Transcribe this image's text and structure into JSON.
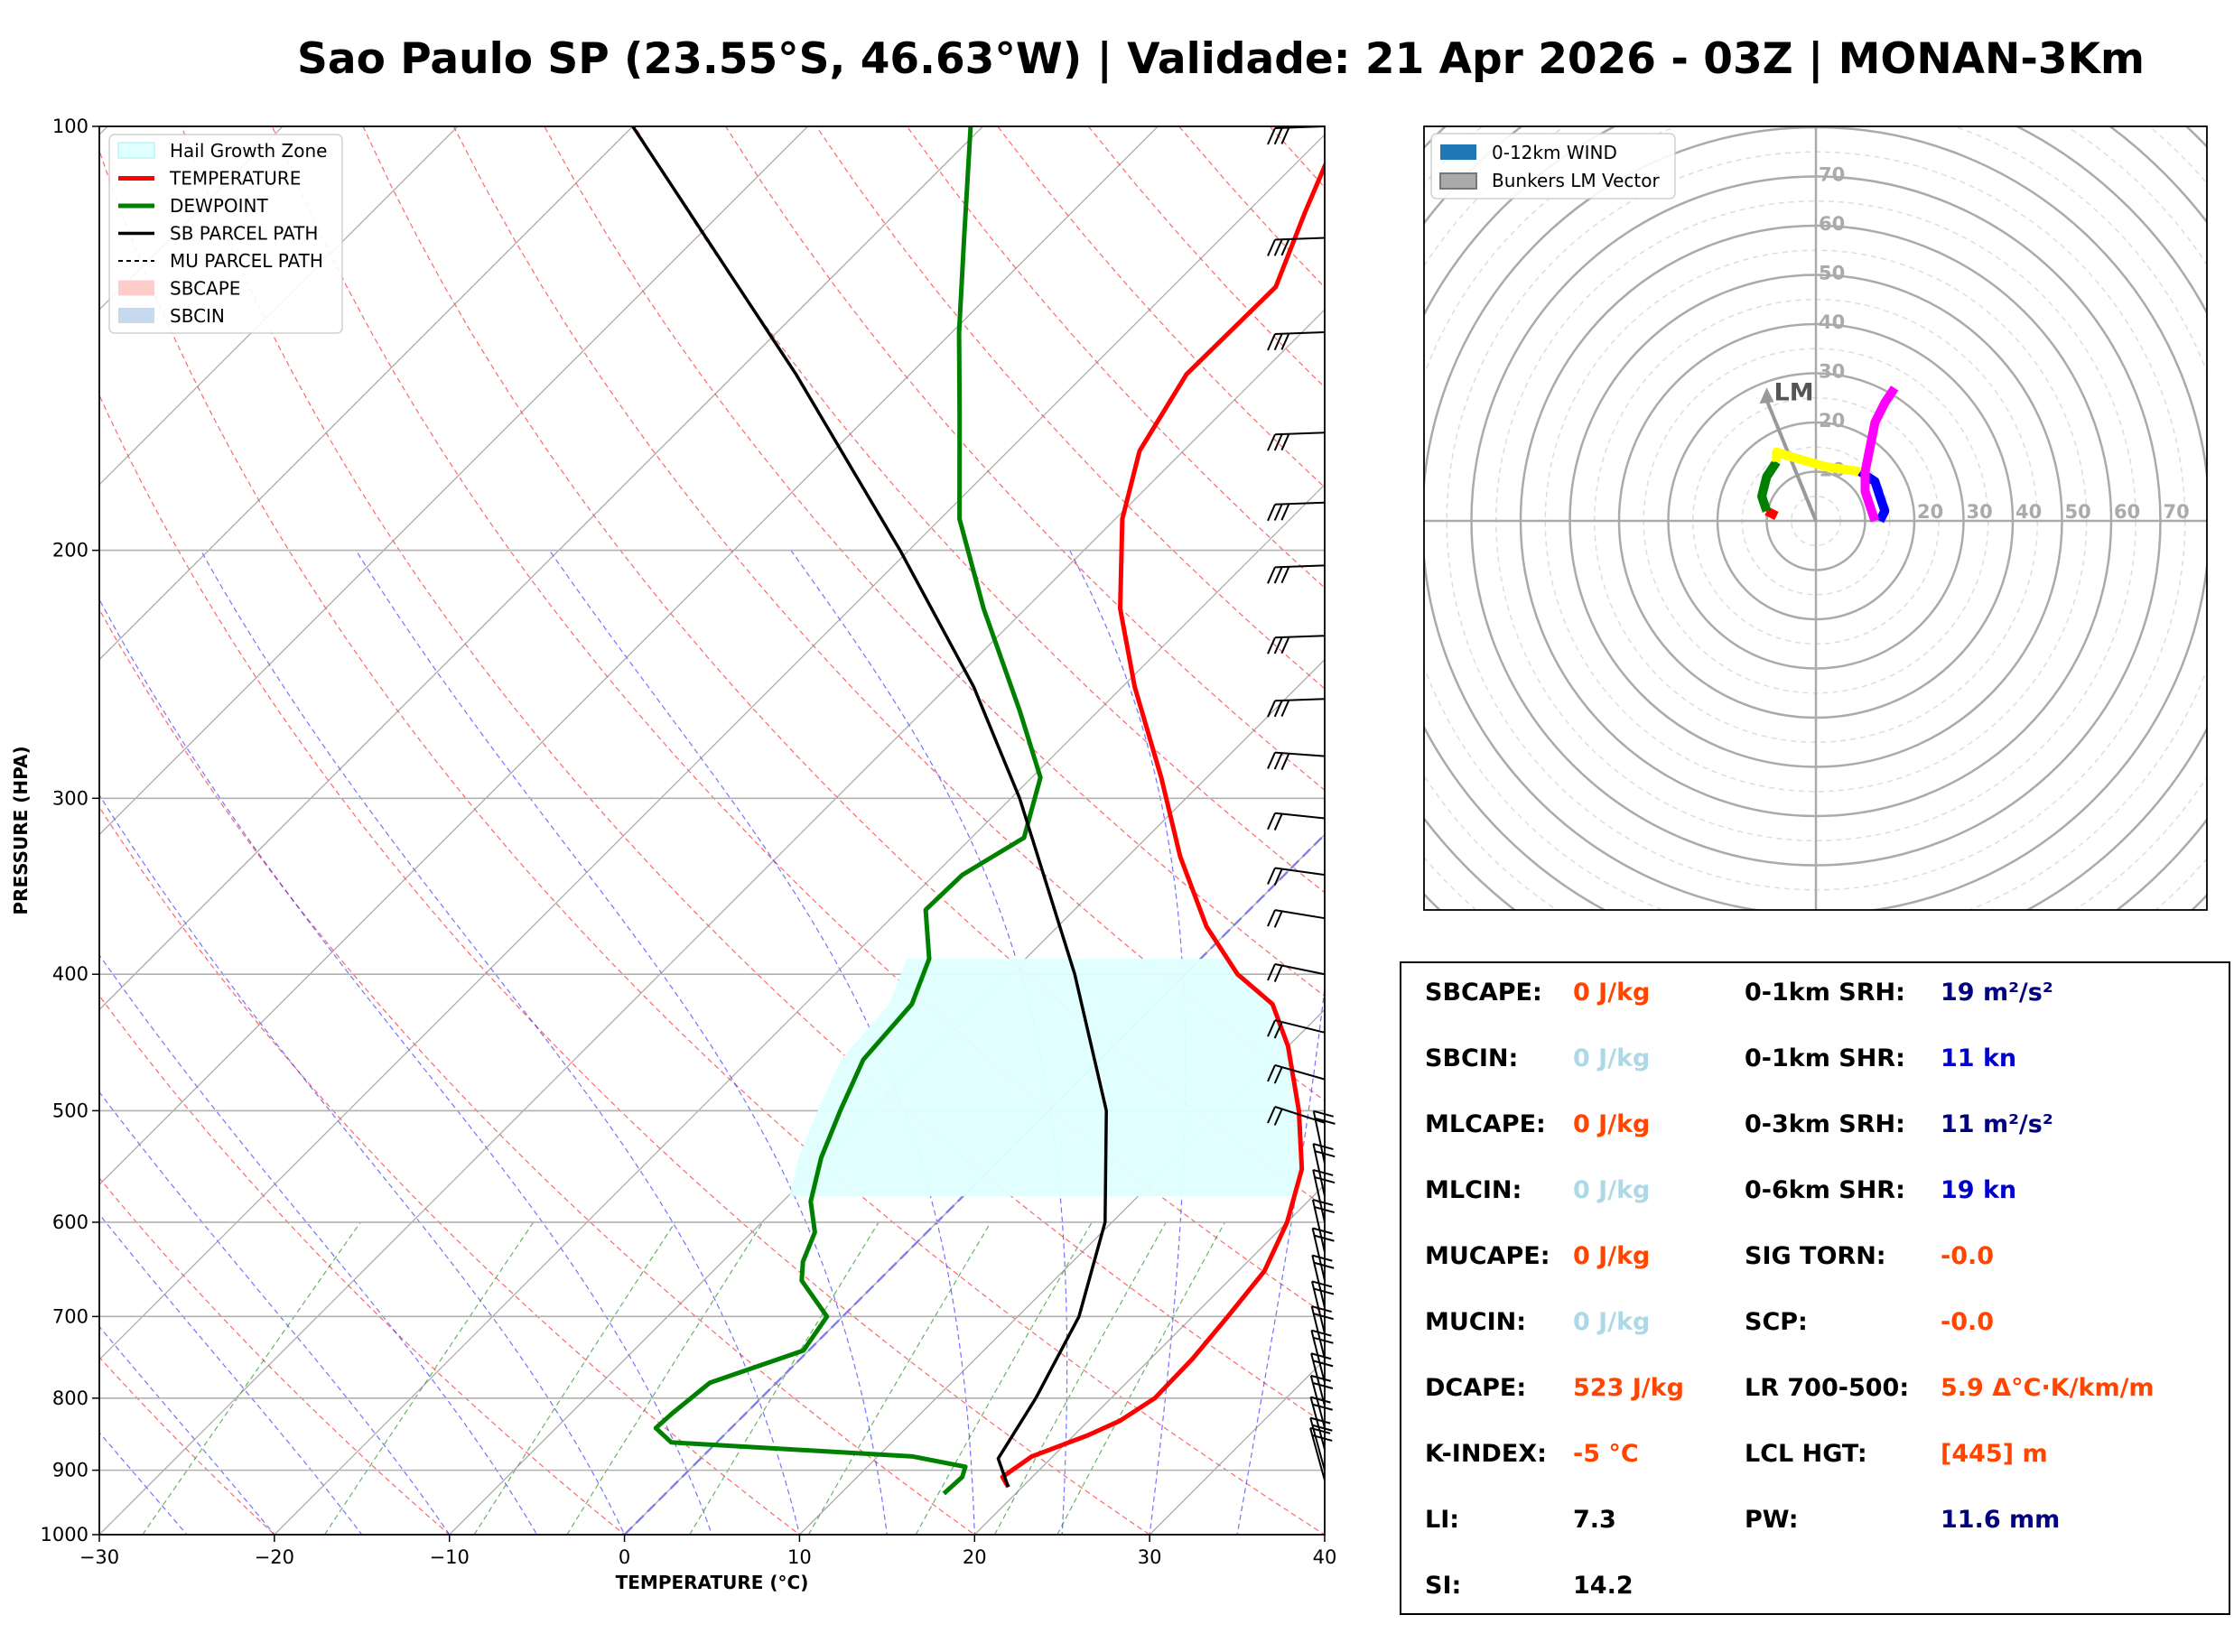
{
  "title": "Sao Paulo SP (23.55°S, 46.63°W) | Validade: 21 Apr 2026 - 03Z | MONAN-3Km",
  "chart_data": [
    {
      "type": "skewt",
      "xlabel": "TEMPERATURE (°C)",
      "ylabel": "PRESSURE (HPA)",
      "xlim": [
        -30,
        40
      ],
      "ylim": [
        1000,
        100
      ],
      "log_scale_y": true,
      "x_ticks": [
        -30,
        -20,
        -10,
        0,
        10,
        20,
        30,
        40
      ],
      "x_tick_labels": [
        "−30",
        "−20",
        "−10",
        "0",
        "10",
        "20",
        "30",
        "40"
      ],
      "y_ticks": [
        1000,
        900,
        800,
        700,
        600,
        500,
        400,
        300,
        200,
        100
      ],
      "grid": true,
      "legend_position": "top-left",
      "legend": [
        "Hail Growth Zone",
        "TEMPERATURE",
        "DEWPOINT",
        "SB PARCEL PATH",
        "MU PARCEL PATH",
        "SBCAPE",
        "SBCIN"
      ],
      "series": [
        {
          "name": "TEMPERATURE",
          "color": "#ff0000",
          "points": [
            [
              925,
              19.2
            ],
            [
              910,
              18.3
            ],
            [
              880,
              18.8
            ],
            [
              850,
              20.8
            ],
            [
              830,
              21.8
            ],
            [
              800,
              22.5
            ],
            [
              750,
              22.4
            ],
            [
              700,
              22.0
            ],
            [
              650,
              21.5
            ],
            [
              600,
              20.0
            ],
            [
              550,
              17.8
            ],
            [
              500,
              14.3
            ],
            [
              450,
              10.0
            ],
            [
              420,
              6.7
            ],
            [
              400,
              3.0
            ],
            [
              370,
              -1.5
            ],
            [
              330,
              -7.0
            ],
            [
              290,
              -12.6
            ],
            [
              250,
              -19.3
            ],
            [
              220,
              -24.6
            ],
            [
              190,
              -29.6
            ],
            [
              170,
              -32.5
            ],
            [
              150,
              -34.2
            ],
            [
              130,
              -34.1
            ],
            [
              115,
              -36.7
            ],
            [
              100,
              -39.5
            ]
          ]
        },
        {
          "name": "DEWPOINT",
          "color": "#008000",
          "points": [
            [
              935,
              15.9
            ],
            [
              910,
              16.0
            ],
            [
              895,
              15.6
            ],
            [
              880,
              12.0
            ],
            [
              860,
              -2.6
            ],
            [
              840,
              -4.3
            ],
            [
              820,
              -4.2
            ],
            [
              780,
              -3.8
            ],
            [
              740,
              -0.3
            ],
            [
              700,
              -0.9
            ],
            [
              660,
              -4.4
            ],
            [
              640,
              -5.4
            ],
            [
              610,
              -6.4
            ],
            [
              580,
              -8.4
            ],
            [
              540,
              -10.3
            ],
            [
              500,
              -11.9
            ],
            [
              460,
              -13.5
            ],
            [
              420,
              -13.9
            ],
            [
              390,
              -15.5
            ],
            [
              360,
              -18.5
            ],
            [
              340,
              -18.4
            ],
            [
              320,
              -17.0
            ],
            [
              290,
              -19.5
            ],
            [
              260,
              -24.5
            ],
            [
              220,
              -32.4
            ],
            [
              190,
              -38.9
            ],
            [
              160,
              -44.9
            ],
            [
              140,
              -49.6
            ],
            [
              120,
              -54.7
            ],
            [
              100,
              -60.7
            ]
          ]
        },
        {
          "name": "SB PARCEL PATH",
          "color": "#000000",
          "points": [
            [
              925,
              19.2
            ],
            [
              883,
              17.0
            ],
            [
              800,
              15.7
            ],
            [
              700,
              13.5
            ],
            [
              600,
              9.6
            ],
            [
              500,
              3.3
            ],
            [
              400,
              -6.3
            ],
            [
              300,
              -19.5
            ],
            [
              250,
              -28.5
            ],
            [
              200,
              -40.5
            ],
            [
              150,
              -56.5
            ],
            [
              100,
              -80.0
            ]
          ]
        }
      ],
      "hail_growth_zone": {
        "from_pressure": 575,
        "to_pressure": 390
      }
    },
    {
      "type": "hodograph",
      "ring_labels": [
        "10",
        "20",
        "30",
        "40",
        "50",
        "60",
        "70"
      ],
      "legend_position": "top-left",
      "legend": [
        "0-12km WIND",
        "Bunkers LM Vector"
      ],
      "bunkers_lm_label": "LM",
      "bunkers_lm_vector": [
        -10,
        26
      ],
      "segments": [
        {
          "color": "#ff0000",
          "points": [
            [
              -8,
              1
            ],
            [
              -10,
              2
            ]
          ]
        },
        {
          "color": "#008000",
          "points": [
            [
              -10,
              2
            ],
            [
              -11,
              5
            ],
            [
              -10,
              9
            ],
            [
              -8,
              12
            ]
          ]
        },
        {
          "color": "#ffff00",
          "points": [
            [
              -8,
              12
            ],
            [
              -8,
              14
            ],
            [
              -5,
              13
            ],
            [
              2,
              11
            ],
            [
              9,
              10
            ]
          ]
        },
        {
          "color": "#0000ff",
          "points": [
            [
              9,
              10
            ],
            [
              12,
              8
            ],
            [
              13,
              5
            ],
            [
              14,
              2
            ],
            [
              13,
              0
            ]
          ]
        },
        {
          "color": "#ff00ff",
          "points": [
            [
              12,
              0
            ],
            [
              11,
              3
            ],
            [
              10,
              6
            ],
            [
              10,
              10
            ],
            [
              12,
              20
            ],
            [
              14,
              24
            ],
            [
              16,
              27
            ]
          ]
        }
      ]
    }
  ],
  "panel": {
    "left": [
      {
        "label": "SBCAPE:",
        "value": "0 J/kg",
        "color": "#ff4500"
      },
      {
        "label": "SBCIN:",
        "value": "0 J/kg",
        "color": "#add8e6"
      },
      {
        "label": "MLCAPE:",
        "value": "0 J/kg",
        "color": "#ff4500"
      },
      {
        "label": "MLCIN:",
        "value": "0 J/kg",
        "color": "#add8e6"
      },
      {
        "label": "MUCAPE:",
        "value": "0 J/kg",
        "color": "#ff4500"
      },
      {
        "label": "MUCIN:",
        "value": "0 J/kg",
        "color": "#add8e6"
      },
      {
        "label": "DCAPE:",
        "value": "523 J/kg",
        "color": "#ff4500"
      },
      {
        "label": "K-INDEX:",
        "value": "-5 °C",
        "color": "#ff4500"
      },
      {
        "label": "LI:",
        "value": "7.3",
        "color": "#000000"
      },
      {
        "label": "SI:",
        "value": "14.2",
        "color": "#000000"
      }
    ],
    "right": [
      {
        "label": "0-1km SRH:",
        "value": "19 m²/s²",
        "color": "#000080"
      },
      {
        "label": "0-1km SHR:",
        "value": "11 kn",
        "color": "#0000cd"
      },
      {
        "label": "0-3km SRH:",
        "value": "11 m²/s²",
        "color": "#000080"
      },
      {
        "label": "0-6km SHR:",
        "value": "19 kn",
        "color": "#0000cd"
      },
      {
        "label": "SIG TORN:",
        "value": "-0.0",
        "color": "#ff4500"
      },
      {
        "label": "SCP:",
        "value": "-0.0",
        "color": "#ff4500"
      },
      {
        "label": "LR 700-500:",
        "value": "5.9 Δ°C·K/km/m",
        "color": "#ff4500"
      },
      {
        "label": "LCL HGT:",
        "value": "[445] m",
        "color": "#ff4500"
      },
      {
        "label": "PW:",
        "value": "11.6 mm",
        "color": "#000080"
      }
    ]
  }
}
